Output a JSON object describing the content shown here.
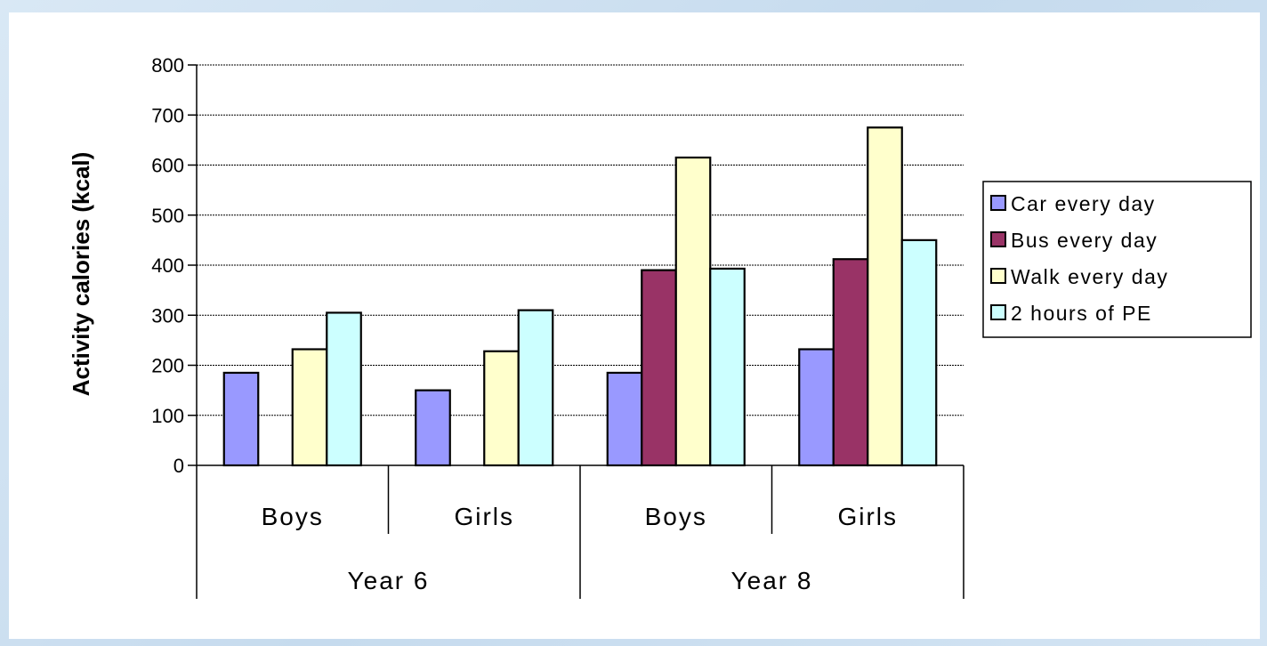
{
  "chart_data": {
    "type": "bar",
    "ylabel": "Activity calories (kcal)",
    "ylim": [
      0,
      800
    ],
    "yticks": [
      "0",
      "100",
      "200",
      "300",
      "400",
      "500",
      "600",
      "700",
      "800"
    ],
    "grid": true,
    "legend_position": "right",
    "groups": [
      {
        "label": "Year 6",
        "categories": [
          "Boys",
          "Girls"
        ]
      },
      {
        "label": "Year 8",
        "categories": [
          "Boys",
          "Girls"
        ]
      }
    ],
    "categories": [
      "Boys",
      "Girls",
      "Boys",
      "Girls"
    ],
    "series": [
      {
        "name": "Car every day",
        "color": "#9999ff",
        "values": [
          185,
          150,
          185,
          232
        ]
      },
      {
        "name": "Bus every day",
        "color": "#993366",
        "values": [
          0,
          0,
          390,
          412
        ]
      },
      {
        "name": "Walk every day",
        "color": "#ffffcc",
        "values": [
          232,
          228,
          615,
          675
        ]
      },
      {
        "name": "2 hours of PE",
        "color": "#ccffff",
        "values": [
          305,
          310,
          393,
          450
        ]
      }
    ]
  }
}
